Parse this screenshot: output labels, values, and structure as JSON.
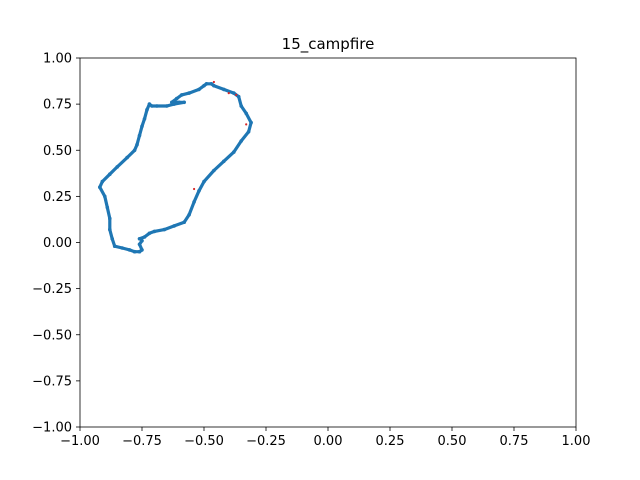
{
  "chart_data": {
    "type": "scatter",
    "title": "15_campfire",
    "xlabel": "",
    "ylabel": "",
    "xlim": [
      -1.0,
      1.0
    ],
    "ylim": [
      -1.0,
      1.0
    ],
    "grid": false,
    "x_tick_labels": [
      "−1.00",
      "−0.75",
      "−0.50",
      "−0.25",
      "0.00",
      "0.25",
      "0.50",
      "0.75",
      "1.00"
    ],
    "y_tick_labels": [
      "−1.00",
      "−0.75",
      "−0.50",
      "−0.25",
      "0.00",
      "0.25",
      "0.50",
      "0.75",
      "1.00"
    ],
    "x_ticks": [
      -1.0,
      -0.75,
      -0.5,
      -0.25,
      0.0,
      0.25,
      0.5,
      0.75,
      1.0
    ],
    "y_ticks": [
      -1.0,
      -0.75,
      -0.5,
      -0.25,
      0.0,
      0.25,
      0.5,
      0.75,
      1.0
    ],
    "series": [
      {
        "color": "#1f77b4",
        "points": [
          [
            -0.76,
            0.02
          ],
          [
            -0.74,
            0.03
          ],
          [
            -0.72,
            0.05
          ],
          [
            -0.7,
            0.06
          ],
          [
            -0.66,
            0.07
          ],
          [
            -0.62,
            0.09
          ],
          [
            -0.58,
            0.11
          ],
          [
            -0.56,
            0.15
          ],
          [
            -0.54,
            0.22
          ],
          [
            -0.52,
            0.28
          ],
          [
            -0.5,
            0.33
          ],
          [
            -0.46,
            0.39
          ],
          [
            -0.42,
            0.44
          ],
          [
            -0.38,
            0.49
          ],
          [
            -0.35,
            0.55
          ],
          [
            -0.32,
            0.6
          ],
          [
            -0.31,
            0.65
          ],
          [
            -0.33,
            0.7
          ],
          [
            -0.35,
            0.74
          ],
          [
            -0.36,
            0.79
          ],
          [
            -0.38,
            0.81
          ],
          [
            -0.42,
            0.83
          ],
          [
            -0.46,
            0.85
          ],
          [
            -0.47,
            0.86
          ],
          [
            -0.49,
            0.86
          ],
          [
            -0.5,
            0.85
          ],
          [
            -0.52,
            0.83
          ],
          [
            -0.56,
            0.81
          ],
          [
            -0.59,
            0.8
          ],
          [
            -0.61,
            0.78
          ],
          [
            -0.63,
            0.76
          ],
          [
            -0.6,
            0.76
          ],
          [
            -0.58,
            0.76
          ],
          [
            -0.62,
            0.75
          ],
          [
            -0.65,
            0.74
          ],
          [
            -0.69,
            0.74
          ],
          [
            -0.71,
            0.74
          ],
          [
            -0.72,
            0.75
          ],
          [
            -0.73,
            0.72
          ],
          [
            -0.74,
            0.67
          ],
          [
            -0.75,
            0.63
          ],
          [
            -0.76,
            0.58
          ],
          [
            -0.77,
            0.53
          ],
          [
            -0.78,
            0.5
          ],
          [
            -0.81,
            0.46
          ],
          [
            -0.85,
            0.41
          ],
          [
            -0.88,
            0.37
          ],
          [
            -0.91,
            0.33
          ],
          [
            -0.92,
            0.3
          ],
          [
            -0.9,
            0.25
          ],
          [
            -0.89,
            0.19
          ],
          [
            -0.88,
            0.13
          ],
          [
            -0.88,
            0.07
          ],
          [
            -0.87,
            0.02
          ],
          [
            -0.86,
            -0.02
          ],
          [
            -0.83,
            -0.03
          ],
          [
            -0.8,
            -0.04
          ],
          [
            -0.78,
            -0.05
          ],
          [
            -0.76,
            -0.05
          ],
          [
            -0.75,
            -0.04
          ],
          [
            -0.76,
            -0.01
          ],
          [
            -0.75,
            0.01
          ]
        ]
      },
      {
        "color": "#d62728",
        "points": [
          [
            -0.4,
            0.81
          ],
          [
            -0.37,
            0.8
          ],
          [
            -0.33,
            0.64
          ],
          [
            -0.54,
            0.29
          ],
          [
            -0.46,
            0.87
          ]
        ]
      }
    ]
  }
}
